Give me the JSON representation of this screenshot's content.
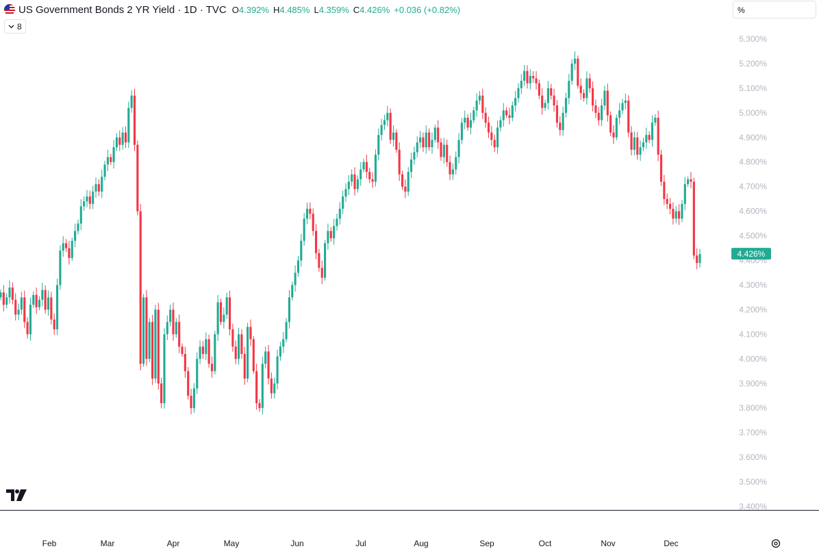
{
  "header": {
    "title": "US Government Bonds 2 YR Yield · 1D · TVC",
    "open_label": "O",
    "open": "4.392%",
    "high_label": "H",
    "high": "4.485%",
    "low_label": "L",
    "low": "4.359%",
    "close_label": "C",
    "close": "4.426%",
    "change": "+0.036 (+0.82%)"
  },
  "indicators_toggle": {
    "count": "8"
  },
  "unit_selector": {
    "value": "%"
  },
  "colors": {
    "up": "#22ab94",
    "down": "#f23645",
    "axis_text": "#b2b5be",
    "axis_line": "#131722"
  },
  "chart_data": {
    "type": "candlestick",
    "price_axis_ticks": [
      "5.300%",
      "5.200%",
      "5.100%",
      "5.000%",
      "4.900%",
      "4.800%",
      "4.700%",
      "4.600%",
      "4.500%",
      "4.400%",
      "4.300%",
      "4.200%",
      "4.100%",
      "4.000%",
      "3.900%",
      "3.800%",
      "3.700%",
      "3.600%",
      "3.500%",
      "3.400%"
    ],
    "ylim": [
      3.4,
      5.3
    ],
    "time_axis_labels": [
      "Feb",
      "Mar",
      "Apr",
      "May",
      "Jun",
      "Jul",
      "Aug",
      "Sep",
      "Oct",
      "Nov",
      "Dec"
    ],
    "last_price_label": "4.426%",
    "last_price": 4.426,
    "close_series": [
      4.27,
      4.22,
      4.25,
      4.29,
      4.24,
      4.18,
      4.2,
      4.25,
      4.15,
      4.1,
      4.22,
      4.26,
      4.21,
      4.24,
      4.28,
      4.2,
      4.25,
      4.16,
      4.12,
      4.3,
      4.44,
      4.47,
      4.45,
      4.41,
      4.48,
      4.52,
      4.55,
      4.62,
      4.64,
      4.66,
      4.63,
      4.68,
      4.71,
      4.68,
      4.74,
      4.79,
      4.82,
      4.8,
      4.86,
      4.9,
      4.87,
      4.92,
      4.88,
      5.02,
      5.07,
      4.87,
      4.6,
      3.98,
      4.25,
      4.0,
      4.15,
      3.92,
      4.2,
      3.9,
      3.82,
      4.1,
      4.15,
      4.2,
      4.1,
      4.15,
      4.05,
      4.02,
      3.95,
      3.85,
      3.8,
      3.88,
      4.0,
      4.05,
      4.02,
      4.08,
      3.98,
      3.95,
      4.1,
      4.23,
      4.15,
      4.18,
      4.25,
      4.12,
      4.05,
      4.0,
      4.1,
      4.02,
      3.92,
      4.13,
      4.08,
      3.95,
      3.82,
      3.8,
      3.98,
      4.03,
      3.92,
      3.86,
      3.9,
      4.01,
      4.05,
      4.08,
      4.15,
      4.25,
      4.3,
      4.35,
      4.4,
      4.48,
      4.57,
      4.61,
      4.59,
      4.52,
      4.43,
      4.37,
      4.33,
      4.47,
      4.52,
      4.49,
      4.54,
      4.57,
      4.61,
      4.66,
      4.69,
      4.72,
      4.75,
      4.69,
      4.73,
      4.77,
      4.8,
      4.76,
      4.73,
      4.72,
      4.83,
      4.91,
      4.95,
      4.97,
      5.0,
      4.89,
      4.92,
      4.85,
      4.75,
      4.7,
      4.68,
      4.76,
      4.81,
      4.84,
      4.88,
      4.9,
      4.86,
      4.92,
      4.86,
      4.89,
      4.94,
      4.88,
      4.82,
      4.87,
      4.8,
      4.75,
      4.77,
      4.82,
      4.89,
      4.96,
      4.98,
      4.94,
      4.97,
      5.01,
      5.05,
      5.07,
      5.0,
      4.96,
      4.92,
      4.89,
      4.86,
      4.94,
      4.97,
      5.01,
      4.99,
      4.98,
      5.03,
      5.06,
      5.1,
      5.13,
      5.17,
      5.12,
      5.15,
      5.14,
      5.12,
      5.07,
      5.02,
      5.04,
      5.1,
      5.07,
      5.03,
      4.96,
      4.93,
      5.0,
      5.06,
      5.13,
      5.2,
      5.22,
      5.11,
      5.08,
      5.06,
      5.14,
      5.1,
      5.03,
      5.0,
      4.97,
      5.03,
      5.09,
      4.99,
      4.92,
      4.9,
      4.98,
      5.01,
      5.04,
      5.05,
      4.92,
      4.85,
      4.9,
      4.83,
      4.86,
      4.88,
      4.91,
      4.89,
      4.96,
      4.98,
      4.83,
      4.72,
      4.65,
      4.63,
      4.61,
      4.57,
      4.6,
      4.57,
      4.63,
      4.71,
      4.73,
      4.72,
      4.42,
      4.39,
      4.426
    ]
  }
}
